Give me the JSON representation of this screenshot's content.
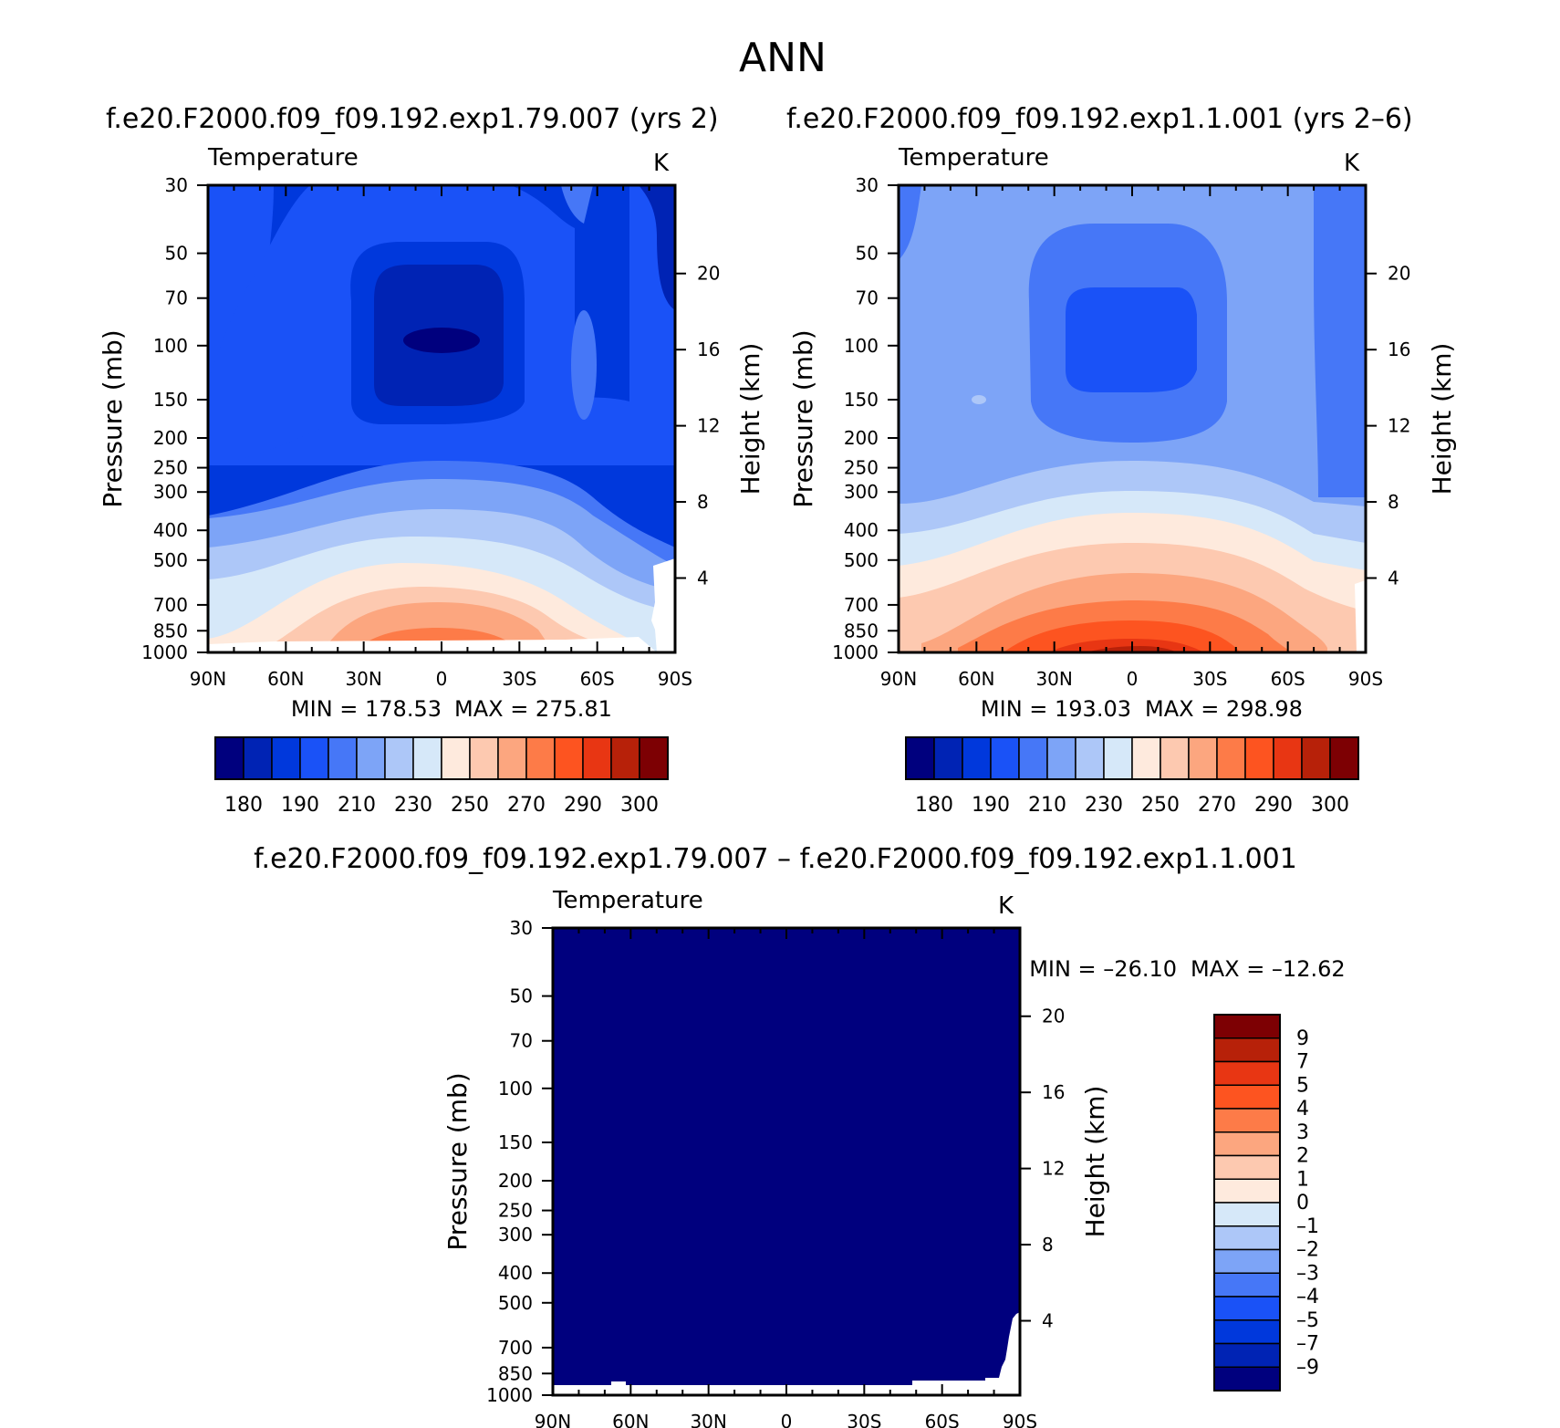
{
  "page_title": "ANN",
  "panel_a_title": "f.e20.F2000.f09_f09.192.exp1.79.007  (yrs  2)",
  "panel_b_title": "f.e20.F2000.f09_f09.192.exp1.1.001  (yrs  2–6)",
  "diff_title": "f.e20.F2000.f09_f09.192.exp1.79.007  –  f.e20.F2000.f09_f09.192.exp1.1.001",
  "colors": {
    "temp_palette": [
      "#00007e",
      "#0023b4",
      "#0038dc",
      "#1a52f7",
      "#4677f7",
      "#7da4f7",
      "#adc7f8",
      "#d6e8f9",
      "#feeadd",
      "#fdc9b0",
      "#fca67f",
      "#fd7b48",
      "#fd5420",
      "#e83613",
      "#b72109",
      "#7d0003"
    ],
    "diff_palette": [
      "#00007e",
      "#0023b4",
      "#0038dc",
      "#1a52f7",
      "#4677f7",
      "#7da4f7",
      "#adc7f8",
      "#d6e8f9",
      "#feeadd",
      "#fdc9b0",
      "#fca67f",
      "#fd7b48",
      "#fd5420",
      "#e83613",
      "#b72109",
      "#7d0003"
    ]
  },
  "chart_data": [
    {
      "type": "heatmap",
      "panel": "model-a",
      "variable": "Temperature",
      "units": "K",
      "xlabel": "",
      "ylabel": "Pressure  (mb)",
      "y2label": "Height  (km)",
      "x_ticks": [
        "90N",
        "60N",
        "30N",
        "0",
        "30S",
        "60S",
        "90S"
      ],
      "y_ticks": [
        "30",
        "50",
        "70",
        "100",
        "150",
        "200",
        "250",
        "300",
        "400",
        "500",
        "700",
        "850",
        "1000"
      ],
      "y2_ticks": [
        "20",
        "16",
        "12",
        "8",
        "4"
      ],
      "min_label": "MIN  =  178.53",
      "max_label": "MAX  =  275.81",
      "min": 178.53,
      "max": 275.81,
      "colorbar_labels": [
        "180",
        "190",
        "210",
        "230",
        "250",
        "270",
        "290",
        "300"
      ],
      "legend": "bottom"
    },
    {
      "type": "heatmap",
      "panel": "model-b",
      "variable": "Temperature",
      "units": "K",
      "xlabel": "",
      "ylabel": "Pressure  (mb)",
      "y2label": "Height  (km)",
      "x_ticks": [
        "90N",
        "60N",
        "30N",
        "0",
        "30S",
        "60S",
        "90S"
      ],
      "y_ticks": [
        "30",
        "50",
        "70",
        "100",
        "150",
        "200",
        "250",
        "300",
        "400",
        "500",
        "700",
        "850",
        "1000"
      ],
      "y2_ticks": [
        "20",
        "16",
        "12",
        "8",
        "4"
      ],
      "min_label": "MIN  =  193.03",
      "max_label": "MAX  =  298.98",
      "min": 193.03,
      "max": 298.98,
      "colorbar_labels": [
        "180",
        "190",
        "210",
        "230",
        "250",
        "270",
        "290",
        "300"
      ],
      "legend": "bottom"
    },
    {
      "type": "heatmap",
      "panel": "difference",
      "variable": "Temperature",
      "units": "K",
      "xlabel": "",
      "ylabel": "Pressure  (mb)",
      "y2label": "Height  (km)",
      "x_ticks": [
        "90N",
        "60N",
        "30N",
        "0",
        "30S",
        "60S",
        "90S"
      ],
      "y_ticks": [
        "30",
        "50",
        "70",
        "100",
        "150",
        "200",
        "250",
        "300",
        "400",
        "500",
        "700",
        "850",
        "1000"
      ],
      "y2_ticks": [
        "20",
        "16",
        "12",
        "8",
        "4"
      ],
      "min_label": "MIN  =  –26.10",
      "max_label": "MAX  =  –12.62",
      "min": -26.1,
      "max": -12.62,
      "colorbar_labels": [
        "9",
        "7",
        "5",
        "4",
        "3",
        "2",
        "1",
        "0",
        "–1",
        "–2",
        "–3",
        "–4",
        "–5",
        "–7",
        "–9"
      ],
      "legend": "right"
    }
  ]
}
